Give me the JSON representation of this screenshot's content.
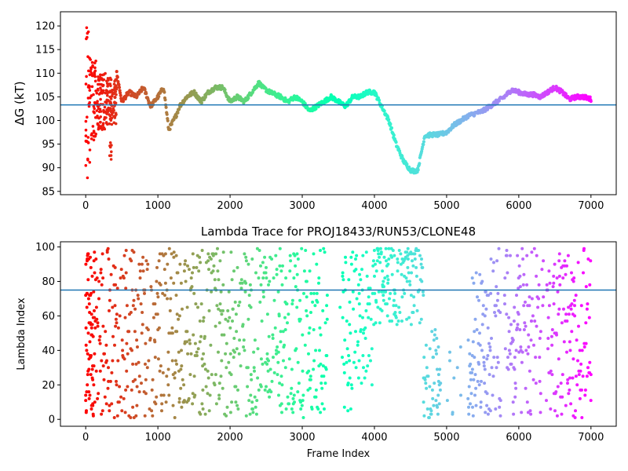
{
  "chart_data": [
    {
      "type": "scatter",
      "title": "",
      "xlabel": "",
      "ylabel": "ΔG (kT)",
      "xlim": [
        -350,
        7350
      ],
      "ylim": [
        84.3,
        123.0
      ],
      "xticks": [
        0,
        1000,
        2000,
        3000,
        4000,
        5000,
        6000,
        7000
      ],
      "yticks": [
        85,
        90,
        95,
        100,
        105,
        110,
        115,
        120
      ],
      "hline": 103.3,
      "hline_color": "#1f77b4",
      "colormap": "rainbow (red at frame 0 → violet at frame 7000)",
      "grid": false,
      "legend": "none",
      "trace_keypoints": {
        "x": [
          400,
          430,
          500,
          600,
          700,
          800,
          900,
          1000,
          1080,
          1150,
          1250,
          1300,
          1400,
          1500,
          1600,
          1700,
          1800,
          1900,
          2000,
          2100,
          2200,
          2300,
          2400,
          2450,
          2550,
          2700,
          2800,
          2900,
          3000,
          3100,
          3200,
          3300,
          3400,
          3500,
          3600,
          3700,
          3800,
          3900,
          4000,
          4100,
          4200,
          4300,
          4400,
          4500,
          4550,
          4600,
          4700,
          4720,
          4800,
          4900,
          5000,
          5100,
          5200,
          5300,
          5400,
          5500,
          5600,
          5700,
          5800,
          5900,
          6000,
          6100,
          6200,
          6300,
          6400,
          6500,
          6600,
          6700,
          6800,
          6900,
          7000
        ],
        "y": [
          104,
          110,
          104,
          106,
          105,
          107,
          103,
          105,
          107,
          98,
          101,
          103,
          105,
          106,
          104,
          106,
          107,
          107,
          104,
          105,
          104,
          106,
          108,
          107,
          106,
          105,
          104,
          105,
          104,
          102,
          103,
          104,
          105,
          104,
          103,
          105,
          105,
          106,
          106,
          103,
          100,
          95,
          91.5,
          89.5,
          89.3,
          89.5,
          97,
          96.8,
          97,
          97,
          97.5,
          99,
          100,
          101,
          101.5,
          102,
          103,
          104,
          105,
          106.5,
          106,
          105.5,
          105.5,
          105,
          106,
          107,
          106,
          104.5,
          105,
          105,
          104.5
        ]
      },
      "early_scatter_range": {
        "x": [
          0,
          430
        ],
        "y": [
          86.9,
          122.1
        ]
      }
    },
    {
      "type": "scatter",
      "title": "Lambda Trace for PROJ18433/RUN53/CLONE48",
      "xlabel": "Frame Index",
      "ylabel": "Lambda Index",
      "xlim": [
        -350,
        7350
      ],
      "ylim": [
        -4,
        103
      ],
      "xticks": [
        0,
        1000,
        2000,
        3000,
        4000,
        5000,
        6000,
        7000
      ],
      "yticks": [
        0,
        20,
        40,
        60,
        80,
        100
      ],
      "hline": 75,
      "hline_color": "#1f77b4",
      "colormap": "rainbow (red at frame 0 → violet at frame 7000)",
      "grid": false,
      "legend": "none",
      "lambda_range": [
        1,
        99
      ],
      "regions": [
        {
          "x": [
            0,
            3700
          ],
          "y": [
            1,
            99
          ],
          "description": "uniform sampling, vertical stripes"
        },
        {
          "x": [
            3700,
            4000
          ],
          "y": [
            20,
            99
          ],
          "description": "mostly upper half"
        },
        {
          "x": [
            4000,
            4680
          ],
          "y": [
            55,
            99
          ],
          "description": "dense cluster near top"
        },
        {
          "x": [
            4680,
            4750
          ],
          "y": [
            1,
            45
          ],
          "description": "sharp drop to low lambda"
        },
        {
          "x": [
            4750,
            5350
          ],
          "y": [
            1,
            55
          ],
          "description": "dense cluster near bottom"
        },
        {
          "x": [
            5350,
            7000
          ],
          "y": [
            1,
            99
          ],
          "description": "widening spread"
        }
      ]
    }
  ]
}
